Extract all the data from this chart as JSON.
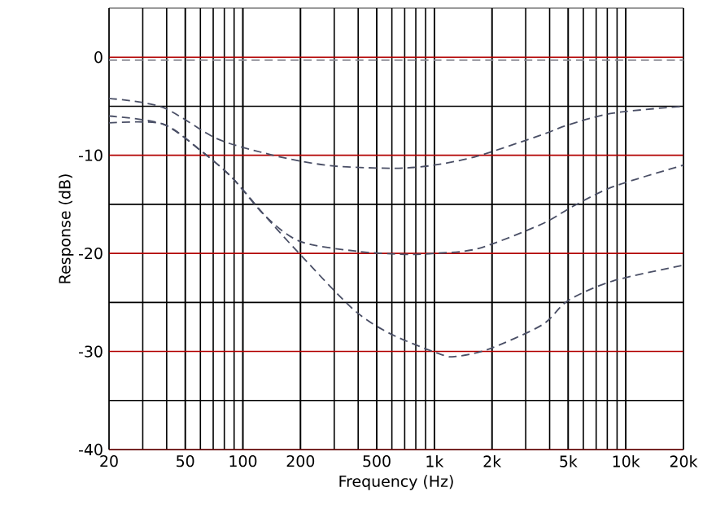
{
  "chart_data": {
    "type": "line",
    "xlabel": "Frequency (Hz)",
    "ylabel": "Response (dB)",
    "log": "x",
    "xlim": [
      20,
      20000
    ],
    "ylim": [
      -40,
      5
    ],
    "xticks": [
      20,
      50,
      100,
      200,
      500,
      {
        "value": 1000,
        "label": "1k"
      },
      {
        "value": 2000,
        "label": "2k"
      },
      {
        "value": 5000,
        "label": "5k"
      },
      {
        "value": 10000,
        "label": "10k"
      },
      {
        "value": 20000,
        "label": "20k"
      }
    ],
    "yticks": [
      -40,
      -30,
      -20,
      -10,
      0
    ],
    "grid": true,
    "line_style": "dashed",
    "marker": "none",
    "series": [
      {
        "color": "#8a8a94",
        "x": [
          20,
          20000
        ],
        "values": [
          -0.3,
          -0.3
        ]
      },
      {
        "color": "#4a4f66",
        "x": [
          20,
          38,
          73,
          131,
          200,
          300,
          500,
          700,
          1000,
          1670,
          3650,
          5000,
          8600,
          20000
        ],
        "values": [
          -4.2,
          -5.1,
          -8.3,
          -9.8,
          -10.6,
          -11.1,
          -11.3,
          -11.3,
          -11,
          -10.1,
          -7.9,
          -6.9,
          -5.7,
          -5
        ]
      },
      {
        "color": "#4a4f66",
        "x": [
          20,
          38,
          60,
          88,
          131,
          200,
          400,
          700,
          1000,
          1700,
          3650,
          5300,
          8600,
          20000
        ],
        "values": [
          -6,
          -6.8,
          -9.5,
          -12.3,
          -16.2,
          -18.8,
          -19.8,
          -20.1,
          -20,
          -19.5,
          -17,
          -15.2,
          -13.2,
          -11
        ]
      },
      {
        "color": "#4a4f66",
        "x": [
          20,
          38,
          60,
          88,
          131,
          201,
          377,
          590,
          1080,
          1300,
          1900,
          3650,
          5000,
          8600,
          20000
        ],
        "values": [
          -6.7,
          -6.8,
          -9.5,
          -12.3,
          -16.2,
          -20.2,
          -25.7,
          -28.2,
          -30.3,
          -30.5,
          -29.8,
          -27.3,
          -24.8,
          -22.8,
          -21.2
        ]
      }
    ]
  }
}
